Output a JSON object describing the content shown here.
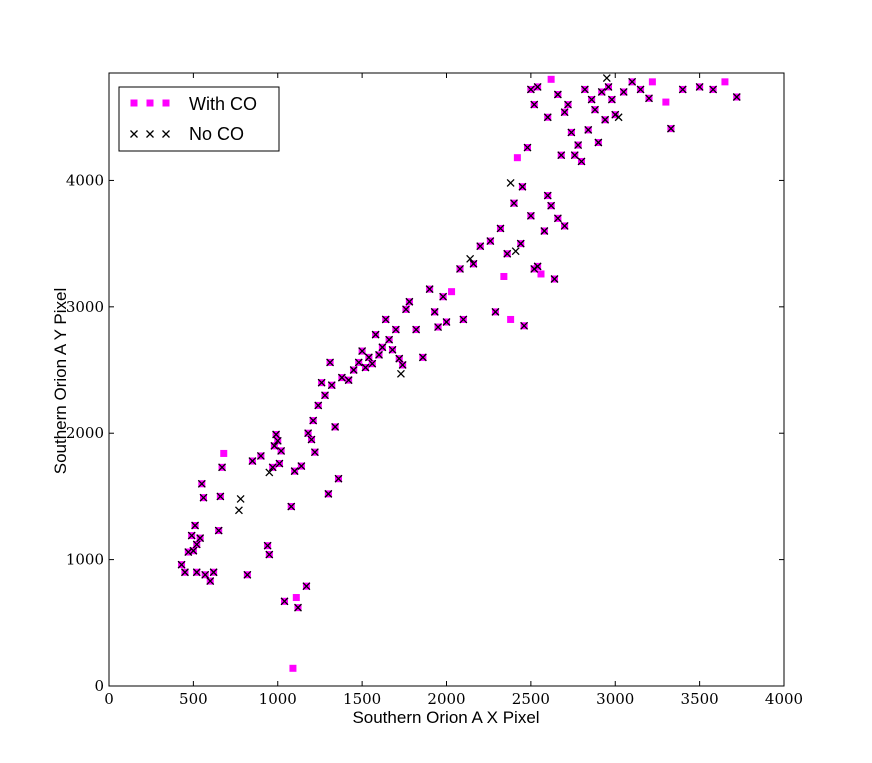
{
  "chart_data": {
    "type": "scatter",
    "title": "",
    "xlabel": "Southern Orion A X Pixel",
    "ylabel": "Southern Orion A Y Pixel",
    "xlim": [
      0,
      4000
    ],
    "ylim": [
      0,
      4850
    ],
    "xticks": [
      0,
      500,
      1000,
      1500,
      2000,
      2500,
      3000,
      3500,
      4000
    ],
    "yticks": [
      0,
      1000,
      2000,
      3000,
      4000
    ],
    "grid": false,
    "legend_position": "top-left",
    "series": [
      {
        "name": "With CO",
        "marker": "square",
        "color": "#ff00ff",
        "points": [
          [
            430,
            960
          ],
          [
            450,
            900
          ],
          [
            470,
            1060
          ],
          [
            490,
            1190
          ],
          [
            500,
            1070
          ],
          [
            510,
            1270
          ],
          [
            520,
            1120
          ],
          [
            540,
            1170
          ],
          [
            520,
            900
          ],
          [
            550,
            1600
          ],
          [
            560,
            1490
          ],
          [
            570,
            880
          ],
          [
            600,
            830
          ],
          [
            620,
            900
          ],
          [
            650,
            1230
          ],
          [
            660,
            1500
          ],
          [
            670,
            1730
          ],
          [
            680,
            1840
          ],
          [
            820,
            880
          ],
          [
            850,
            1780
          ],
          [
            900,
            1820
          ],
          [
            940,
            1110
          ],
          [
            950,
            1040
          ],
          [
            970,
            1730
          ],
          [
            980,
            1900
          ],
          [
            990,
            1990
          ],
          [
            1000,
            1940
          ],
          [
            1010,
            1760
          ],
          [
            1020,
            1860
          ],
          [
            1040,
            670
          ],
          [
            1080,
            1420
          ],
          [
            1090,
            140
          ],
          [
            1100,
            1700
          ],
          [
            1110,
            700
          ],
          [
            1120,
            620
          ],
          [
            1140,
            1740
          ],
          [
            1170,
            790
          ],
          [
            1180,
            2000
          ],
          [
            1200,
            1950
          ],
          [
            1210,
            2100
          ],
          [
            1220,
            1850
          ],
          [
            1240,
            2220
          ],
          [
            1260,
            2400
          ],
          [
            1280,
            2300
          ],
          [
            1300,
            1520
          ],
          [
            1310,
            2560
          ],
          [
            1320,
            2380
          ],
          [
            1340,
            2050
          ],
          [
            1360,
            1640
          ],
          [
            1380,
            2440
          ],
          [
            1420,
            2420
          ],
          [
            1450,
            2500
          ],
          [
            1480,
            2560
          ],
          [
            1500,
            2650
          ],
          [
            1520,
            2520
          ],
          [
            1540,
            2600
          ],
          [
            1560,
            2550
          ],
          [
            1580,
            2780
          ],
          [
            1600,
            2620
          ],
          [
            1620,
            2680
          ],
          [
            1640,
            2900
          ],
          [
            1660,
            2740
          ],
          [
            1680,
            2660
          ],
          [
            1700,
            2820
          ],
          [
            1720,
            2590
          ],
          [
            1740,
            2540
          ],
          [
            1760,
            2980
          ],
          [
            1780,
            3040
          ],
          [
            1820,
            2820
          ],
          [
            1860,
            2600
          ],
          [
            1900,
            3140
          ],
          [
            1930,
            2960
          ],
          [
            1950,
            2840
          ],
          [
            1980,
            3080
          ],
          [
            2000,
            2880
          ],
          [
            2030,
            3120
          ],
          [
            2080,
            3300
          ],
          [
            2100,
            2900
          ],
          [
            2160,
            3340
          ],
          [
            2200,
            3480
          ],
          [
            2260,
            3520
          ],
          [
            2290,
            2960
          ],
          [
            2320,
            3620
          ],
          [
            2340,
            3240
          ],
          [
            2360,
            3420
          ],
          [
            2380,
            2900
          ],
          [
            2400,
            3820
          ],
          [
            2420,
            4180
          ],
          [
            2440,
            3500
          ],
          [
            2450,
            3950
          ],
          [
            2460,
            2850
          ],
          [
            2480,
            4260
          ],
          [
            2500,
            3720
          ],
          [
            2520,
            3300
          ],
          [
            2540,
            3320
          ],
          [
            2560,
            3260
          ],
          [
            2580,
            3600
          ],
          [
            2600,
            3880
          ],
          [
            2620,
            3800
          ],
          [
            2640,
            3220
          ],
          [
            2660,
            3700
          ],
          [
            2680,
            4200
          ],
          [
            2700,
            3640
          ],
          [
            2500,
            4720
          ],
          [
            2520,
            4600
          ],
          [
            2540,
            4740
          ],
          [
            2600,
            4500
          ],
          [
            2620,
            4800
          ],
          [
            2660,
            4680
          ],
          [
            2700,
            4540
          ],
          [
            2720,
            4600
          ],
          [
            2740,
            4380
          ],
          [
            2760,
            4200
          ],
          [
            2780,
            4280
          ],
          [
            2800,
            4150
          ],
          [
            2820,
            4720
          ],
          [
            2840,
            4400
          ],
          [
            2860,
            4640
          ],
          [
            2880,
            4560
          ],
          [
            2900,
            4300
          ],
          [
            2920,
            4700
          ],
          [
            2940,
            4480
          ],
          [
            2960,
            4740
          ],
          [
            2980,
            4640
          ],
          [
            3000,
            4520
          ],
          [
            3050,
            4700
          ],
          [
            3100,
            4780
          ],
          [
            3150,
            4720
          ],
          [
            3200,
            4650
          ],
          [
            3220,
            4780
          ],
          [
            3300,
            4620
          ],
          [
            3330,
            4410
          ],
          [
            3400,
            4720
          ],
          [
            3500,
            4740
          ],
          [
            3580,
            4720
          ],
          [
            3650,
            4780
          ],
          [
            3720,
            4660
          ]
        ]
      },
      {
        "name": "No CO",
        "marker": "x",
        "color": "#000000",
        "points": [
          [
            430,
            960
          ],
          [
            450,
            900
          ],
          [
            470,
            1060
          ],
          [
            490,
            1190
          ],
          [
            500,
            1070
          ],
          [
            510,
            1270
          ],
          [
            520,
            1120
          ],
          [
            540,
            1170
          ],
          [
            520,
            900
          ],
          [
            550,
            1600
          ],
          [
            560,
            1490
          ],
          [
            570,
            880
          ],
          [
            600,
            830
          ],
          [
            620,
            900
          ],
          [
            650,
            1230
          ],
          [
            660,
            1500
          ],
          [
            670,
            1730
          ],
          [
            770,
            1390
          ],
          [
            780,
            1480
          ],
          [
            820,
            880
          ],
          [
            850,
            1780
          ],
          [
            900,
            1820
          ],
          [
            940,
            1110
          ],
          [
            950,
            1040
          ],
          [
            950,
            1690
          ],
          [
            970,
            1730
          ],
          [
            980,
            1900
          ],
          [
            990,
            1990
          ],
          [
            1000,
            1940
          ],
          [
            1010,
            1760
          ],
          [
            1020,
            1860
          ],
          [
            1040,
            670
          ],
          [
            1080,
            1420
          ],
          [
            1100,
            1700
          ],
          [
            1120,
            620
          ],
          [
            1140,
            1740
          ],
          [
            1170,
            790
          ],
          [
            1180,
            2000
          ],
          [
            1200,
            1950
          ],
          [
            1210,
            2100
          ],
          [
            1220,
            1850
          ],
          [
            1240,
            2220
          ],
          [
            1260,
            2400
          ],
          [
            1280,
            2300
          ],
          [
            1300,
            1520
          ],
          [
            1310,
            2560
          ],
          [
            1320,
            2380
          ],
          [
            1340,
            2050
          ],
          [
            1360,
            1640
          ],
          [
            1380,
            2440
          ],
          [
            1420,
            2420
          ],
          [
            1450,
            2500
          ],
          [
            1480,
            2560
          ],
          [
            1500,
            2650
          ],
          [
            1520,
            2520
          ],
          [
            1540,
            2600
          ],
          [
            1560,
            2550
          ],
          [
            1580,
            2780
          ],
          [
            1600,
            2620
          ],
          [
            1620,
            2680
          ],
          [
            1640,
            2900
          ],
          [
            1660,
            2740
          ],
          [
            1680,
            2660
          ],
          [
            1700,
            2820
          ],
          [
            1720,
            2590
          ],
          [
            1730,
            2470
          ],
          [
            1740,
            2540
          ],
          [
            1760,
            2980
          ],
          [
            1780,
            3040
          ],
          [
            1820,
            2820
          ],
          [
            1860,
            2600
          ],
          [
            1900,
            3140
          ],
          [
            1930,
            2960
          ],
          [
            1950,
            2840
          ],
          [
            1980,
            3080
          ],
          [
            2000,
            2880
          ],
          [
            2080,
            3300
          ],
          [
            2100,
            2900
          ],
          [
            2140,
            3380
          ],
          [
            2160,
            3340
          ],
          [
            2200,
            3480
          ],
          [
            2260,
            3520
          ],
          [
            2290,
            2960
          ],
          [
            2320,
            3620
          ],
          [
            2360,
            3420
          ],
          [
            2380,
            3980
          ],
          [
            2400,
            3820
          ],
          [
            2410,
            3440
          ],
          [
            2440,
            3500
          ],
          [
            2450,
            3950
          ],
          [
            2460,
            2850
          ],
          [
            2480,
            4260
          ],
          [
            2500,
            3720
          ],
          [
            2520,
            3300
          ],
          [
            2540,
            3320
          ],
          [
            2580,
            3600
          ],
          [
            2600,
            3880
          ],
          [
            2620,
            3800
          ],
          [
            2640,
            3220
          ],
          [
            2660,
            3700
          ],
          [
            2680,
            4200
          ],
          [
            2700,
            3640
          ],
          [
            2500,
            4720
          ],
          [
            2520,
            4600
          ],
          [
            2540,
            4740
          ],
          [
            2600,
            4500
          ],
          [
            2660,
            4680
          ],
          [
            2700,
            4540
          ],
          [
            2720,
            4600
          ],
          [
            2740,
            4380
          ],
          [
            2760,
            4200
          ],
          [
            2780,
            4280
          ],
          [
            2800,
            4150
          ],
          [
            2820,
            4720
          ],
          [
            2840,
            4400
          ],
          [
            2860,
            4640
          ],
          [
            2880,
            4560
          ],
          [
            2900,
            4300
          ],
          [
            2920,
            4700
          ],
          [
            2940,
            4480
          ],
          [
            2950,
            4810
          ],
          [
            2960,
            4740
          ],
          [
            2980,
            4640
          ],
          [
            3000,
            4520
          ],
          [
            3020,
            4500
          ],
          [
            3050,
            4700
          ],
          [
            3100,
            4780
          ],
          [
            3150,
            4720
          ],
          [
            3200,
            4650
          ],
          [
            3330,
            4410
          ],
          [
            3400,
            4720
          ],
          [
            3500,
            4740
          ],
          [
            3580,
            4720
          ],
          [
            3720,
            4660
          ]
        ]
      }
    ]
  }
}
